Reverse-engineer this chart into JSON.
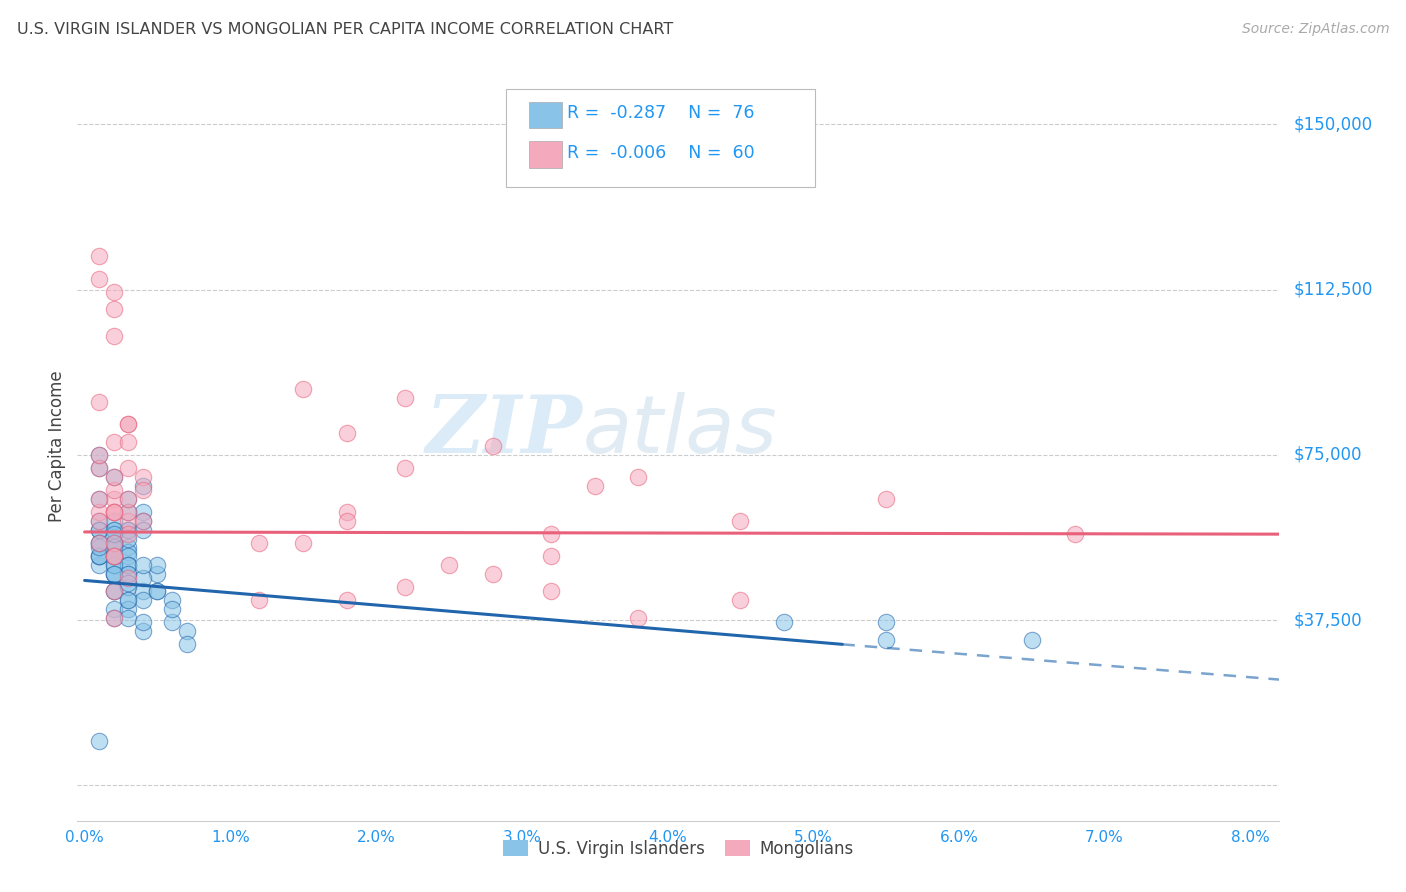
{
  "title": "U.S. VIRGIN ISLANDER VS MONGOLIAN PER CAPITA INCOME CORRELATION CHART",
  "source": "Source: ZipAtlas.com",
  "ylabel": "Per Capita Income",
  "xlabel_ticks": [
    0.0,
    1.0,
    2.0,
    3.0,
    4.0,
    5.0,
    6.0,
    7.0,
    8.0
  ],
  "yticks": [
    0,
    37500,
    75000,
    112500,
    150000
  ],
  "ytick_labels": [
    "",
    "$37,500",
    "$75,000",
    "$112,500",
    "$150,000"
  ],
  "xlim": [
    -0.0005,
    0.082
  ],
  "ylim": [
    -8000,
    162000
  ],
  "blue_color": "#89c4e8",
  "pink_color": "#f4a9bc",
  "blue_line_color": "#2166ac",
  "pink_line_color": "#e8607a",
  "R_blue": -0.287,
  "N_blue": 76,
  "R_pink": -0.006,
  "N_pink": 60,
  "watermark_zip": "ZIP",
  "watermark_atlas": "atlas",
  "legend_label_blue": "U.S. Virgin Islanders",
  "legend_label_pink": "Mongolians",
  "title_color": "#444444",
  "axis_label_color": "#2196f3",
  "blue_line_x0": 0.0,
  "blue_line_y0": 46500,
  "blue_line_x1": 0.052,
  "blue_line_y1": 32000,
  "blue_dash_x0": 0.052,
  "blue_dash_y0": 32000,
  "blue_dash_x1": 0.082,
  "blue_dash_y1": 24000,
  "pink_line_x0": 0.0,
  "pink_line_y0": 57500,
  "pink_line_x1": 0.082,
  "pink_line_y1": 57000,
  "blue_scatter_x": [
    0.001,
    0.002,
    0.002,
    0.001,
    0.001,
    0.003,
    0.003,
    0.004,
    0.004,
    0.005,
    0.002,
    0.002,
    0.003,
    0.003,
    0.004,
    0.001,
    0.001,
    0.002,
    0.002,
    0.003,
    0.003,
    0.004,
    0.005,
    0.006,
    0.007,
    0.001,
    0.002,
    0.003,
    0.002,
    0.003,
    0.001,
    0.002,
    0.002,
    0.003,
    0.003,
    0.004,
    0.001,
    0.001,
    0.002,
    0.003,
    0.002,
    0.002,
    0.003,
    0.004,
    0.006,
    0.007,
    0.001,
    0.001,
    0.002,
    0.003,
    0.003,
    0.004,
    0.004,
    0.005,
    0.003,
    0.002,
    0.001,
    0.002,
    0.003,
    0.004,
    0.001,
    0.002,
    0.002,
    0.003,
    0.004,
    0.005,
    0.006,
    0.065,
    0.055,
    0.001,
    0.002,
    0.002,
    0.003,
    0.002,
    0.055,
    0.048
  ],
  "blue_scatter_y": [
    55000,
    55000,
    58000,
    50000,
    52000,
    58000,
    54000,
    68000,
    62000,
    48000,
    48000,
    52000,
    53000,
    58000,
    44000,
    65000,
    60000,
    70000,
    50000,
    52000,
    56000,
    60000,
    50000,
    42000,
    35000,
    72000,
    55000,
    50000,
    44000,
    48000,
    75000,
    60000,
    55000,
    62000,
    65000,
    58000,
    52000,
    58000,
    54000,
    50000,
    44000,
    40000,
    42000,
    35000,
    37000,
    32000,
    52000,
    58000,
    48000,
    45000,
    40000,
    47000,
    42000,
    44000,
    42000,
    38000,
    10000,
    50000,
    38000,
    37000,
    54000,
    52000,
    58000,
    48000,
    50000,
    44000,
    40000,
    33000,
    37000,
    55000,
    48000,
    52000,
    46000,
    57000,
    33000,
    37000
  ],
  "pink_scatter_x": [
    0.001,
    0.002,
    0.002,
    0.003,
    0.001,
    0.002,
    0.003,
    0.004,
    0.001,
    0.002,
    0.003,
    0.002,
    0.003,
    0.004,
    0.001,
    0.002,
    0.002,
    0.003,
    0.003,
    0.001,
    0.002,
    0.003,
    0.004,
    0.002,
    0.003,
    0.001,
    0.002,
    0.002,
    0.015,
    0.028,
    0.002,
    0.003,
    0.002,
    0.001,
    0.015,
    0.022,
    0.018,
    0.028,
    0.035,
    0.002,
    0.012,
    0.022,
    0.018,
    0.032,
    0.032,
    0.045,
    0.001,
    0.018,
    0.025,
    0.032,
    0.038,
    0.045,
    0.018,
    0.012,
    0.001,
    0.022,
    0.038,
    0.055,
    0.002,
    0.068
  ],
  "pink_scatter_y": [
    62000,
    65000,
    67000,
    60000,
    72000,
    70000,
    62000,
    60000,
    115000,
    102000,
    82000,
    78000,
    78000,
    70000,
    120000,
    112000,
    108000,
    82000,
    72000,
    55000,
    62000,
    65000,
    67000,
    52000,
    57000,
    60000,
    55000,
    62000,
    55000,
    48000,
    44000,
    47000,
    52000,
    87000,
    90000,
    88000,
    80000,
    77000,
    68000,
    38000,
    42000,
    45000,
    62000,
    57000,
    52000,
    60000,
    65000,
    42000,
    50000,
    44000,
    38000,
    42000,
    60000,
    55000,
    75000,
    72000,
    70000,
    65000,
    62000,
    57000
  ]
}
